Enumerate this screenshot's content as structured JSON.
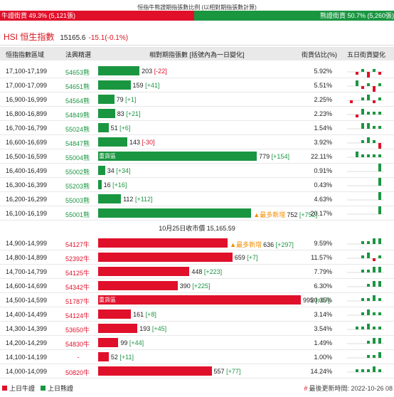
{
  "header": {
    "caption": "恒指牛熊證期指張數比例 (以相對期指張數計算)",
    "bull_label": "牛證街貨 49.3% (5,121張)",
    "bear_label": "熊證街貨 50.7% (5,260張)",
    "bull_ratio": 0.493,
    "bull_color": "#e0102a",
    "bear_color": "#1a9641"
  },
  "index": {
    "name": "HSI 恒生指數",
    "price": "15165.6",
    "change": "-15.1(-0.1%)"
  },
  "columns": {
    "range": "恒指指數區域",
    "code": "法興精選",
    "contracts": "相對期指張數 [括號內為一日變化]",
    "pct": "街貨佔比(%)",
    "five_day": "五日街貨變化"
  },
  "bar_max": 995,
  "bear_rows": [
    {
      "range": "17,100-17,199",
      "code": "54653熊",
      "value": 203,
      "value_text": "203",
      "chg": "[-22]",
      "chg_color": "#e0102a",
      "pct": "5.92%",
      "tag": "",
      "new": "",
      "spark": [
        0,
        -1,
        1,
        -2,
        1,
        -1
      ]
    },
    {
      "range": "17,000-17,099",
      "code": "54651熊",
      "value": 159,
      "value_text": "159",
      "chg": "[+41]",
      "chg_color": "#1a9641",
      "pct": "5.51%",
      "tag": "",
      "new": "",
      "spark": [
        0,
        2,
        -1,
        1,
        -2,
        1
      ]
    },
    {
      "range": "16,900-16,999",
      "code": "54564熊",
      "value": 79,
      "value_text": "79",
      "chg": "[+1]",
      "chg_color": "#1a9641",
      "pct": "2.25%",
      "tag": "",
      "new": "",
      "spark": [
        -1,
        0,
        1,
        2,
        -1,
        1
      ]
    },
    {
      "range": "16,800-16,899",
      "code": "54849熊",
      "value": 83,
      "value_text": "83",
      "chg": "[+21]",
      "chg_color": "#1a9641",
      "pct": "2.23%",
      "tag": "",
      "new": "",
      "spark": [
        0,
        -1,
        2,
        1,
        1,
        1
      ]
    },
    {
      "range": "16,700-16,799",
      "code": "55024熊",
      "value": 51,
      "value_text": "51",
      "chg": "[+6]",
      "chg_color": "#1a9641",
      "pct": "1.54%",
      "tag": "",
      "new": "",
      "spark": [
        0,
        0,
        2,
        2,
        1,
        1
      ]
    },
    {
      "range": "16,600-16,699",
      "code": "54847熊",
      "value": 143,
      "value_text": "143",
      "chg": "[-30]",
      "chg_color": "#e0102a",
      "pct": "3.92%",
      "tag": "",
      "new": "",
      "spark": [
        0,
        0,
        1,
        2,
        1,
        -2
      ]
    },
    {
      "range": "16,500-16,599",
      "code": "55004熊",
      "value": 779,
      "value_text": "779",
      "chg": "[+154]",
      "chg_color": "#1a9641",
      "pct": "22.11%",
      "tag": "重貨區",
      "new": "",
      "spark": [
        0,
        2,
        1,
        1,
        1,
        1
      ]
    },
    {
      "range": "16,400-16,499",
      "code": "55002熊",
      "value": 34,
      "value_text": "34",
      "chg": "[+34]",
      "chg_color": "#1a9641",
      "pct": "0.91%",
      "tag": "",
      "new": "",
      "spark": [
        0,
        0,
        0,
        0,
        0,
        3
      ]
    },
    {
      "range": "16,300-16,399",
      "code": "55203熊",
      "value": 16,
      "value_text": "16",
      "chg": "[+16]",
      "chg_color": "#1a9641",
      "pct": "0.43%",
      "tag": "",
      "new": "",
      "spark": [
        0,
        0,
        0,
        0,
        0,
        3
      ]
    },
    {
      "range": "16,200-16,299",
      "code": "55003熊",
      "value": 112,
      "value_text": "112",
      "chg": "[+112]",
      "chg_color": "#1a9641",
      "pct": "4.63%",
      "tag": "",
      "new": "",
      "spark": [
        0,
        0,
        0,
        0,
        0,
        3
      ]
    },
    {
      "range": "16,100-16,199",
      "code": "55001熊",
      "value": 752,
      "value_text": "752",
      "chg": "[+752]",
      "chg_color": "#1a9641",
      "pct": "20.17%",
      "tag": "",
      "new": "最多新增",
      "spark": [
        0,
        0,
        0,
        0,
        0,
        3
      ]
    }
  ],
  "close_label": "10月25日收市價 15,165.59",
  "bull_rows": [
    {
      "range": "14,900-14,999",
      "code": "54127牛",
      "value": 636,
      "value_text": "636",
      "chg": "[+297]",
      "chg_color": "#1a9641",
      "pct": "9.59%",
      "tag": "",
      "new": "最多新增",
      "spark": [
        0,
        0,
        1,
        1,
        2,
        2
      ]
    },
    {
      "range": "14,800-14,899",
      "code": "52392牛",
      "value": 659,
      "value_text": "659",
      "chg": "[+7]",
      "chg_color": "#1a9641",
      "pct": "11.57%",
      "tag": "",
      "new": "",
      "spark": [
        0,
        0,
        1,
        2,
        -1,
        1
      ]
    },
    {
      "range": "14,700-14,799",
      "code": "54125牛",
      "value": 448,
      "value_text": "448",
      "chg": "[+223]",
      "chg_color": "#1a9641",
      "pct": "7.79%",
      "tag": "",
      "new": "",
      "spark": [
        0,
        0,
        1,
        1,
        2,
        2
      ]
    },
    {
      "range": "14,600-14,699",
      "code": "54342牛",
      "value": 390,
      "value_text": "390",
      "chg": "[+225]",
      "chg_color": "#1a9641",
      "pct": "6.30%",
      "tag": "",
      "new": "",
      "spark": [
        0,
        0,
        0,
        1,
        2,
        2
      ]
    },
    {
      "range": "14,500-14,599",
      "code": "51787牛",
      "value": 995,
      "value_text": "995",
      "chg": "[+67]",
      "chg_color": "#1a9641",
      "pct": "20.35%",
      "tag": "重貨區",
      "new": "",
      "spark": [
        0,
        0,
        1,
        1,
        2,
        1
      ]
    },
    {
      "range": "14,400-14,499",
      "code": "54124牛",
      "value": 161,
      "value_text": "161",
      "chg": "[+8]",
      "chg_color": "#1a9641",
      "pct": "3.14%",
      "tag": "",
      "new": "",
      "spark": [
        0,
        0,
        1,
        2,
        1,
        1
      ]
    },
    {
      "range": "14,300-14,399",
      "code": "53650牛",
      "value": 193,
      "value_text": "193",
      "chg": "[+45]",
      "chg_color": "#1a9641",
      "pct": "3.54%",
      "tag": "",
      "new": "",
      "spark": [
        0,
        1,
        1,
        2,
        1,
        1
      ]
    },
    {
      "range": "14,200-14,299",
      "code": "54830牛",
      "value": 99,
      "value_text": "99",
      "chg": "[+44]",
      "chg_color": "#1a9641",
      "pct": "1.49%",
      "tag": "",
      "new": "",
      "spark": [
        0,
        0,
        0,
        1,
        2,
        2
      ]
    },
    {
      "range": "14,100-14,199",
      "code": "-",
      "value": 52,
      "value_text": "52",
      "chg": "[+11]",
      "chg_color": "#1a9641",
      "pct": "1.00%",
      "tag": "",
      "new": "",
      "spark": [
        0,
        0,
        0,
        1,
        1,
        2
      ]
    },
    {
      "range": "14,000-14,099",
      "code": "50820牛",
      "value": 557,
      "value_text": "557",
      "chg": "[+77]",
      "chg_color": "#1a9641",
      "pct": "14.24%",
      "tag": "",
      "new": "",
      "spark": [
        0,
        1,
        1,
        1,
        2,
        1
      ]
    }
  ],
  "legend": {
    "bull": "上日牛證",
    "bear": "上日熊證"
  },
  "update": {
    "hash": "#",
    "text": "最後更新時間: 2022-10-26 08"
  }
}
